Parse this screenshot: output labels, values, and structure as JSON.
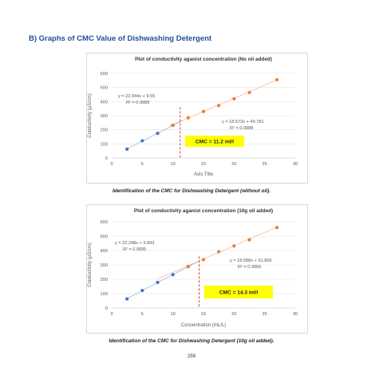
{
  "page": {
    "section_heading": "B)   Graphs of CMC Value of Dishwashing Detergent",
    "page_number": "259"
  },
  "chart_data": [
    {
      "type": "scatter",
      "title": "Plot of conductivity aganist concentration (No oil added)",
      "xlabel": "Axis Title",
      "ylabel": "Conductivity  (µS/cm)",
      "xlim": [
        0,
        30
      ],
      "ylim": [
        0,
        600
      ],
      "x_ticks": [
        "0",
        "5",
        "10",
        "15",
        "20",
        "25",
        "30"
      ],
      "y_ticks": [
        "0",
        "100",
        "200",
        "300",
        "400",
        "500",
        "600"
      ],
      "grid": true,
      "series": [
        {
          "color": "#4472c4",
          "x": [
            2.5,
            5,
            7.5,
            10
          ],
          "y": [
            63,
            122,
            175,
            232
          ]
        },
        {
          "color": "#ed7d31",
          "x": [
            10,
            12.5,
            15,
            17.5,
            20,
            22.5,
            27
          ],
          "y": [
            232,
            285,
            330,
            372,
            420,
            465,
            555
          ]
        }
      ],
      "trendlines": [
        {
          "equation": "y = 22.044x + 9.55",
          "r2": "R² = 0.9989",
          "color": "#4472c4",
          "x": [
            2.5,
            11.5
          ]
        },
        {
          "equation": "y = 18.673x + 49.781",
          "r2": "R² = 0.9988",
          "color": "#ed7d31",
          "x": [
            9.5,
            27
          ]
        }
      ],
      "cmc_line_x": 11.2,
      "cmc_label": "CMC = 11.2   ml/l",
      "caption": "Identification of the CMC for Dishwashing Detergent (without oil)."
    },
    {
      "type": "scatter",
      "title": "Plot of conductivity aganist concentration (10g oil added)",
      "xlabel": "Concentration (mL/L)",
      "ylabel": "Conductivity  (µS/cm)",
      "xlim": [
        0,
        30
      ],
      "ylim": [
        0,
        600
      ],
      "x_ticks": [
        "0",
        "5",
        "10",
        "15",
        "20",
        "25",
        "30"
      ],
      "y_ticks": [
        "0",
        "100",
        "200",
        "300",
        "400",
        "500",
        "600"
      ],
      "grid": true,
      "series": [
        {
          "color": "#4472c4",
          "x": [
            2.5,
            5,
            7.5,
            10,
            12.5
          ],
          "y": [
            63,
            122,
            178,
            232,
            288
          ]
        },
        {
          "color": "#ed7d31",
          "x": [
            12.5,
            15,
            17.5,
            20,
            22.5,
            27
          ],
          "y": [
            288,
            336,
            392,
            432,
            475,
            560
          ]
        }
      ],
      "trendlines": [
        {
          "equation": "y = 22.248x + 9.893",
          "r2": "R² = 0.9995",
          "color": "#4472c4",
          "x": [
            2.5,
            14
          ]
        },
        {
          "equation": "y = 18.588x + 61.866",
          "r2": "R² = 0.9966",
          "color": "#ed7d31",
          "x": [
            7.5,
            27
          ]
        }
      ],
      "cmc_line_x": 14.3,
      "cmc_label": "CMC = 14.3  ml/l",
      "caption": "Identification of the CMC for Dishwashing Detergent (10g oil added)."
    }
  ]
}
